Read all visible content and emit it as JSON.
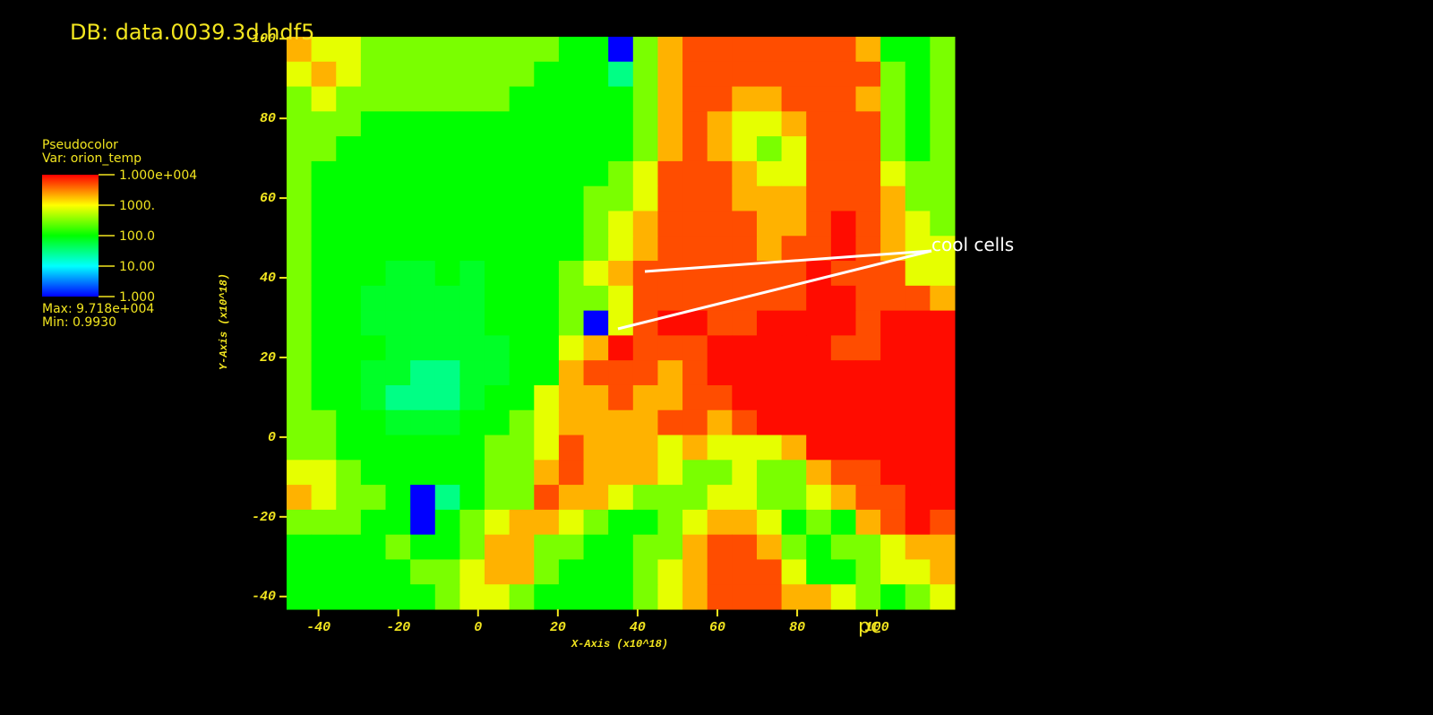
{
  "chart_data": {
    "type": "heatmap",
    "title": "DB: data.0039.3d.hdf5",
    "xlabel": "X-Axis (x10^18)",
    "ylabel": "Y-Axis (x10^18)",
    "units_label": "pc",
    "annotation": "cool cells",
    "xlim": [
      -48,
      119.5
    ],
    "ylim": [
      -43.2,
      100.5
    ],
    "xticks": [
      -40,
      -20,
      0,
      20,
      40,
      60,
      80,
      100
    ],
    "yticks": [
      -40,
      -20,
      0,
      20,
      40,
      60,
      80,
      100
    ],
    "log_scale": true,
    "colorbar": {
      "title": "Pseudocolor",
      "var_label": "Var: orion_temp",
      "range": [
        1,
        10000
      ],
      "ticks": [
        {
          "value": 10000,
          "label": "1.000e+004"
        },
        {
          "value": 1000,
          "label": "1000."
        },
        {
          "value": 100,
          "label": "100.0"
        },
        {
          "value": 10,
          "label": "10.00"
        },
        {
          "value": 1,
          "label": "1.000"
        }
      ],
      "max_label": "Max:  9.718e+004",
      "min_label": "Min:  0.9930"
    },
    "z": [
      [
        2000,
        800,
        800,
        300,
        300,
        300,
        300,
        300,
        300,
        300,
        300,
        100,
        100,
        1,
        300,
        2000,
        5000,
        5000,
        5000,
        5000,
        5000,
        5000,
        5000,
        2000,
        100,
        100,
        300
      ],
      [
        800,
        2000,
        800,
        300,
        300,
        300,
        300,
        300,
        300,
        300,
        100,
        100,
        100,
        30,
        300,
        2000,
        5000,
        5000,
        5000,
        5000,
        5000,
        5000,
        5000,
        5000,
        300,
        100,
        300
      ],
      [
        300,
        800,
        300,
        300,
        300,
        300,
        300,
        300,
        300,
        100,
        100,
        100,
        100,
        100,
        300,
        2000,
        5000,
        5000,
        2000,
        2000,
        5000,
        5000,
        5000,
        2000,
        300,
        100,
        300
      ],
      [
        300,
        300,
        300,
        100,
        100,
        100,
        100,
        100,
        100,
        100,
        100,
        100,
        100,
        100,
        300,
        2000,
        5000,
        2000,
        800,
        800,
        2000,
        5000,
        5000,
        5000,
        300,
        100,
        300
      ],
      [
        300,
        300,
        100,
        100,
        100,
        100,
        100,
        100,
        100,
        100,
        100,
        100,
        100,
        100,
        300,
        2000,
        5000,
        2000,
        800,
        300,
        800,
        5000,
        5000,
        5000,
        300,
        100,
        300
      ],
      [
        300,
        100,
        100,
        100,
        100,
        100,
        100,
        100,
        100,
        100,
        100,
        100,
        100,
        300,
        800,
        5000,
        5000,
        5000,
        2000,
        800,
        800,
        5000,
        5000,
        5000,
        800,
        300,
        300
      ],
      [
        300,
        100,
        100,
        100,
        100,
        100,
        100,
        100,
        100,
        100,
        100,
        100,
        300,
        300,
        800,
        5000,
        5000,
        5000,
        2000,
        2000,
        2000,
        5000,
        5000,
        5000,
        2000,
        300,
        300
      ],
      [
        300,
        100,
        100,
        100,
        100,
        100,
        100,
        100,
        100,
        100,
        100,
        100,
        300,
        800,
        2000,
        5000,
        5000,
        5000,
        5000,
        2000,
        2000,
        5000,
        9000,
        5000,
        2000,
        800,
        300
      ],
      [
        300,
        100,
        100,
        100,
        100,
        100,
        100,
        100,
        100,
        100,
        100,
        100,
        300,
        800,
        2000,
        5000,
        5000,
        5000,
        5000,
        2000,
        5000,
        5000,
        9000,
        5000,
        2000,
        800,
        800
      ],
      [
        300,
        100,
        100,
        100,
        70,
        70,
        100,
        70,
        100,
        100,
        100,
        300,
        800,
        2000,
        5000,
        5000,
        5000,
        5000,
        5000,
        5000,
        5000,
        9000,
        5000,
        5000,
        5000,
        800,
        800
      ],
      [
        300,
        100,
        100,
        70,
        70,
        70,
        70,
        70,
        100,
        100,
        100,
        300,
        300,
        800,
        5000,
        5000,
        5000,
        5000,
        5000,
        5000,
        5000,
        9000,
        9000,
        5000,
        5000,
        5000,
        2000
      ],
      [
        300,
        100,
        100,
        70,
        70,
        70,
        70,
        70,
        100,
        100,
        100,
        300,
        1,
        800,
        5000,
        9000,
        9000,
        5000,
        5000,
        9000,
        9000,
        9000,
        9000,
        5000,
        9000,
        9000,
        9000
      ],
      [
        300,
        100,
        100,
        100,
        70,
        70,
        70,
        70,
        70,
        100,
        100,
        800,
        2000,
        9000,
        5000,
        5000,
        5000,
        9000,
        9000,
        9000,
        9000,
        9000,
        5000,
        5000,
        9000,
        9000,
        9000
      ],
      [
        300,
        100,
        100,
        70,
        70,
        30,
        30,
        70,
        70,
        100,
        100,
        2000,
        5000,
        5000,
        5000,
        2000,
        5000,
        9000,
        9000,
        9000,
        9000,
        9000,
        9000,
        9000,
        9000,
        9000,
        9000
      ],
      [
        300,
        100,
        100,
        70,
        30,
        30,
        30,
        70,
        100,
        100,
        800,
        2000,
        2000,
        5000,
        2000,
        2000,
        5000,
        5000,
        9000,
        9000,
        9000,
        9000,
        9000,
        9000,
        9000,
        9000,
        9000
      ],
      [
        300,
        300,
        100,
        100,
        70,
        70,
        70,
        100,
        100,
        300,
        800,
        2000,
        2000,
        2000,
        2000,
        5000,
        5000,
        2000,
        5000,
        9000,
        9000,
        9000,
        9000,
        9000,
        9000,
        9000,
        9000
      ],
      [
        300,
        300,
        100,
        100,
        100,
        100,
        100,
        100,
        300,
        300,
        800,
        5000,
        2000,
        2000,
        2000,
        800,
        2000,
        800,
        800,
        800,
        2000,
        9000,
        9000,
        9000,
        9000,
        9000,
        9000
      ],
      [
        800,
        800,
        300,
        100,
        100,
        100,
        100,
        100,
        300,
        300,
        2000,
        5000,
        2000,
        2000,
        2000,
        800,
        300,
        300,
        800,
        300,
        300,
        2000,
        5000,
        5000,
        9000,
        9000,
        9000
      ],
      [
        2000,
        800,
        300,
        300,
        100,
        1,
        30,
        100,
        300,
        300,
        5000,
        2000,
        2000,
        800,
        300,
        300,
        300,
        800,
        800,
        300,
        300,
        800,
        2000,
        5000,
        5000,
        9000,
        9000
      ],
      [
        300,
        300,
        300,
        100,
        100,
        1,
        100,
        300,
        800,
        2000,
        2000,
        800,
        300,
        100,
        100,
        300,
        800,
        2000,
        2000,
        800,
        100,
        300,
        100,
        2000,
        5000,
        9000,
        5000
      ],
      [
        100,
        100,
        100,
        100,
        300,
        100,
        100,
        300,
        2000,
        2000,
        300,
        300,
        100,
        100,
        300,
        300,
        2000,
        5000,
        5000,
        2000,
        300,
        100,
        300,
        300,
        800,
        2000,
        2000
      ],
      [
        100,
        100,
        100,
        100,
        100,
        300,
        300,
        800,
        2000,
        2000,
        300,
        100,
        100,
        100,
        300,
        800,
        2000,
        5000,
        5000,
        5000,
        800,
        100,
        100,
        300,
        800,
        800,
        2000
      ],
      [
        100,
        100,
        100,
        100,
        100,
        100,
        300,
        800,
        800,
        300,
        100,
        100,
        100,
        100,
        300,
        800,
        2000,
        5000,
        5000,
        5000,
        2000,
        2000,
        800,
        300,
        100,
        300,
        800
      ]
    ]
  }
}
